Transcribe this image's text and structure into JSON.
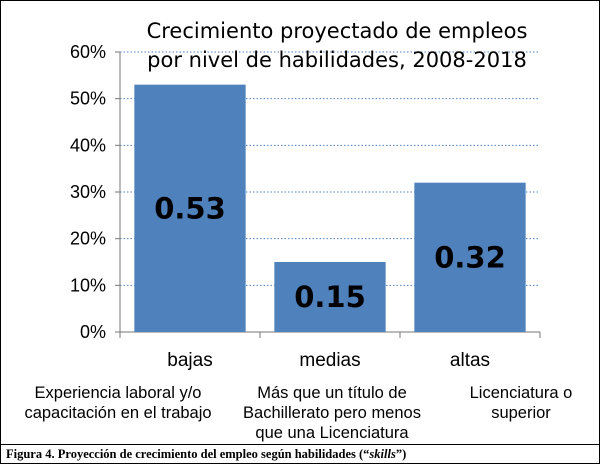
{
  "chart_data": {
    "type": "bar",
    "title": [
      "Crecimiento proyectado de empleos",
      "por nivel de habilidades, 2008-2018"
    ],
    "categories": [
      "bajas",
      "medias",
      "altas"
    ],
    "values": [
      0.53,
      0.15,
      0.32
    ],
    "data_labels": [
      "0.53",
      "0.15",
      "0.32"
    ],
    "y_ticks": [
      "0%",
      "10%",
      "20%",
      "30%",
      "40%",
      "50%",
      "60%"
    ],
    "ylim": [
      0,
      0.6
    ],
    "grid": true,
    "bar_color": "#4f81bd",
    "grid_color": "#4f81bd"
  },
  "category_notes": [
    [
      "Experiencia laboral y/o",
      "capacitación en el trabajo"
    ],
    [
      "Más que un título de",
      "Bachillerato pero menos",
      "que una Licenciatura"
    ],
    [
      "Licenciatura o",
      "superior"
    ]
  ],
  "caption": {
    "prefix": "Figura 4. Proyección de crecimiento del empleo según habilidades (“",
    "emph": "skills",
    "suffix": "”)"
  }
}
